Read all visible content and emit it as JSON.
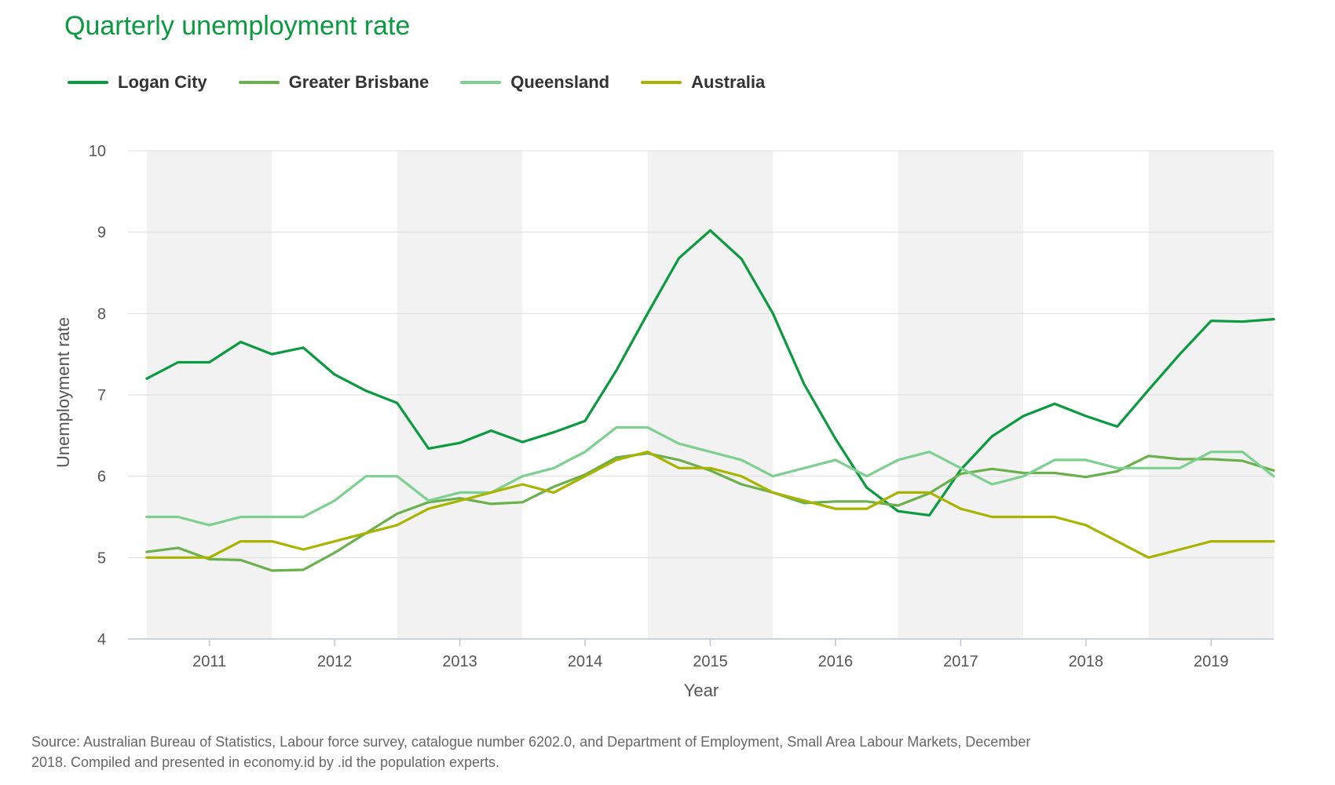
{
  "title": "Quarterly unemployment rate",
  "source_note": "Source: Australian Bureau of Statistics, Labour force survey, catalogue number 6202.0, and Department of Employment, Small Area Labour Markets, December 2018. Compiled and presented in economy.id by .id the population experts.",
  "chart_data": {
    "type": "line",
    "xlabel": "Year",
    "ylabel": "Unemployment rate",
    "ylim": [
      4,
      10
    ],
    "yticks": [
      4,
      5,
      6,
      7,
      8,
      9,
      10
    ],
    "xlim": [
      2010.35,
      2019.5
    ],
    "xticks": [
      2011,
      2012,
      2013,
      2014,
      2015,
      2016,
      2017,
      2018,
      2019
    ],
    "grid": true,
    "legend": "top-left",
    "shaded_years": [
      2010,
      2012,
      2014,
      2016,
      2018
    ],
    "x": [
      2010.5,
      2010.75,
      2011.0,
      2011.25,
      2011.5,
      2011.75,
      2012.0,
      2012.25,
      2012.5,
      2012.75,
      2013.0,
      2013.25,
      2013.5,
      2013.75,
      2014.0,
      2014.25,
      2014.5,
      2014.75,
      2015.0,
      2015.25,
      2015.5,
      2015.75,
      2016.0,
      2016.25,
      2016.5,
      2016.75,
      2017.0,
      2017.25,
      2017.5,
      2017.75,
      2018.0,
      2018.25,
      2018.5,
      2018.75,
      2019.0,
      2019.25,
      2019.5
    ],
    "series": [
      {
        "name": "Logan City",
        "color": "#0a9a3f",
        "values": [
          7.2,
          7.4,
          7.4,
          7.65,
          7.5,
          7.58,
          7.25,
          7.05,
          6.9,
          6.34,
          6.41,
          6.56,
          6.42,
          6.54,
          6.68,
          7.3,
          8.0,
          8.68,
          9.02,
          8.67,
          8.0,
          7.13,
          6.46,
          5.86,
          5.57,
          5.52,
          6.08,
          6.49,
          6.74,
          6.89,
          6.74,
          6.61,
          7.06,
          7.5,
          7.91,
          7.9,
          7.93
        ]
      },
      {
        "name": "Greater Brisbane",
        "color": "#6ab04c",
        "values": [
          5.07,
          5.12,
          4.98,
          4.97,
          4.84,
          4.85,
          5.06,
          5.3,
          5.54,
          5.68,
          5.73,
          5.66,
          5.68,
          5.87,
          6.02,
          6.23,
          6.28,
          6.2,
          6.07,
          5.9,
          5.8,
          5.67,
          5.69,
          5.69,
          5.64,
          5.79,
          6.03,
          6.09,
          6.04,
          6.04,
          5.99,
          6.06,
          6.25,
          6.21,
          6.21,
          6.19,
          6.07
        ]
      },
      {
        "name": "Queensland",
        "color": "#7dd08f",
        "values": [
          5.5,
          5.5,
          5.4,
          5.5,
          5.5,
          5.5,
          5.7,
          6.0,
          6.0,
          5.7,
          5.8,
          5.8,
          6.0,
          6.1,
          6.3,
          6.6,
          6.6,
          6.4,
          6.3,
          6.2,
          6.0,
          6.1,
          6.2,
          6.0,
          6.2,
          6.3,
          6.1,
          5.9,
          6.0,
          6.2,
          6.2,
          6.1,
          6.1,
          6.1,
          6.3,
          6.3,
          6.0
        ]
      },
      {
        "name": "Australia",
        "color": "#a8b400",
        "values": [
          5.0,
          5.0,
          5.0,
          5.2,
          5.2,
          5.1,
          5.2,
          5.3,
          5.4,
          5.6,
          5.7,
          5.8,
          5.9,
          5.8,
          6.0,
          6.2,
          6.3,
          6.1,
          6.1,
          6.0,
          5.8,
          5.7,
          5.6,
          5.6,
          5.8,
          5.8,
          5.6,
          5.5,
          5.5,
          5.5,
          5.4,
          5.2,
          5.0,
          5.1,
          5.2,
          5.2,
          5.2
        ]
      }
    ]
  }
}
